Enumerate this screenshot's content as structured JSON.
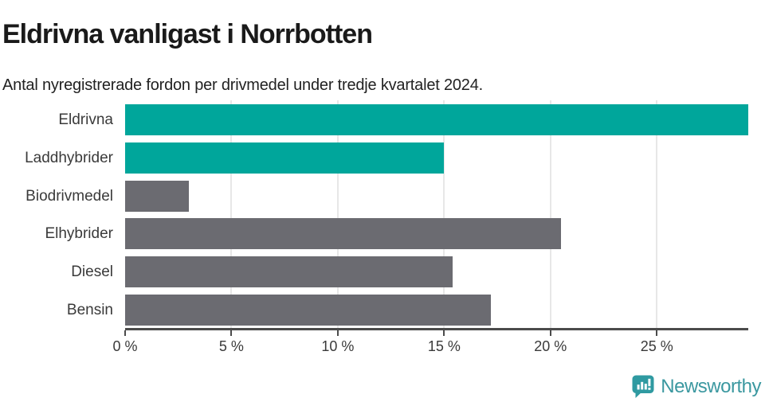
{
  "header": {
    "title": "Eldrivna vanligast i Norrbotten",
    "subtitle": "Antal nyregistrerade fordon per drivmedel under tredje kvartalet 2024."
  },
  "chart_data": {
    "type": "bar",
    "orientation": "horizontal",
    "title": "Eldrivna vanligast i Norrbotten",
    "subtitle": "Antal nyregistrerade fordon per drivmedel under tredje kvartalet 2024.",
    "categories": [
      "Eldrivna",
      "Laddhybrider",
      "Biodrivmedel",
      "Elhybrider",
      "Diesel",
      "Bensin"
    ],
    "values": [
      29.3,
      15.0,
      3.0,
      20.5,
      15.4,
      17.2
    ],
    "unit": "%",
    "bar_colors": [
      "#00a69b",
      "#00a69b",
      "#6b6b71",
      "#6b6b71",
      "#6b6b71",
      "#6b6b71"
    ],
    "xlabel": "",
    "ylabel": "",
    "xlim": [
      0,
      29.3
    ],
    "x_ticks": [
      0,
      5,
      10,
      15,
      20,
      25
    ],
    "x_tick_labels": [
      "0 %",
      "5 %",
      "10 %",
      "15 %",
      "20 %",
      "25 %"
    ],
    "grid": "vertical-only",
    "legend": "none"
  },
  "footer": {
    "brand": "Newsworthy",
    "logo_icon": "newsworthy-chart-speech-bubble-icon"
  },
  "colors": {
    "accent_teal": "#00a69b",
    "neutral_gray": "#6b6b71",
    "axis": "#4b4b4b",
    "gridline": "#e7e7e7",
    "text_dark": "#1a1a1a",
    "logo_teal": "#2f9aa1",
    "logo_text_teal": "#3b98a0"
  }
}
